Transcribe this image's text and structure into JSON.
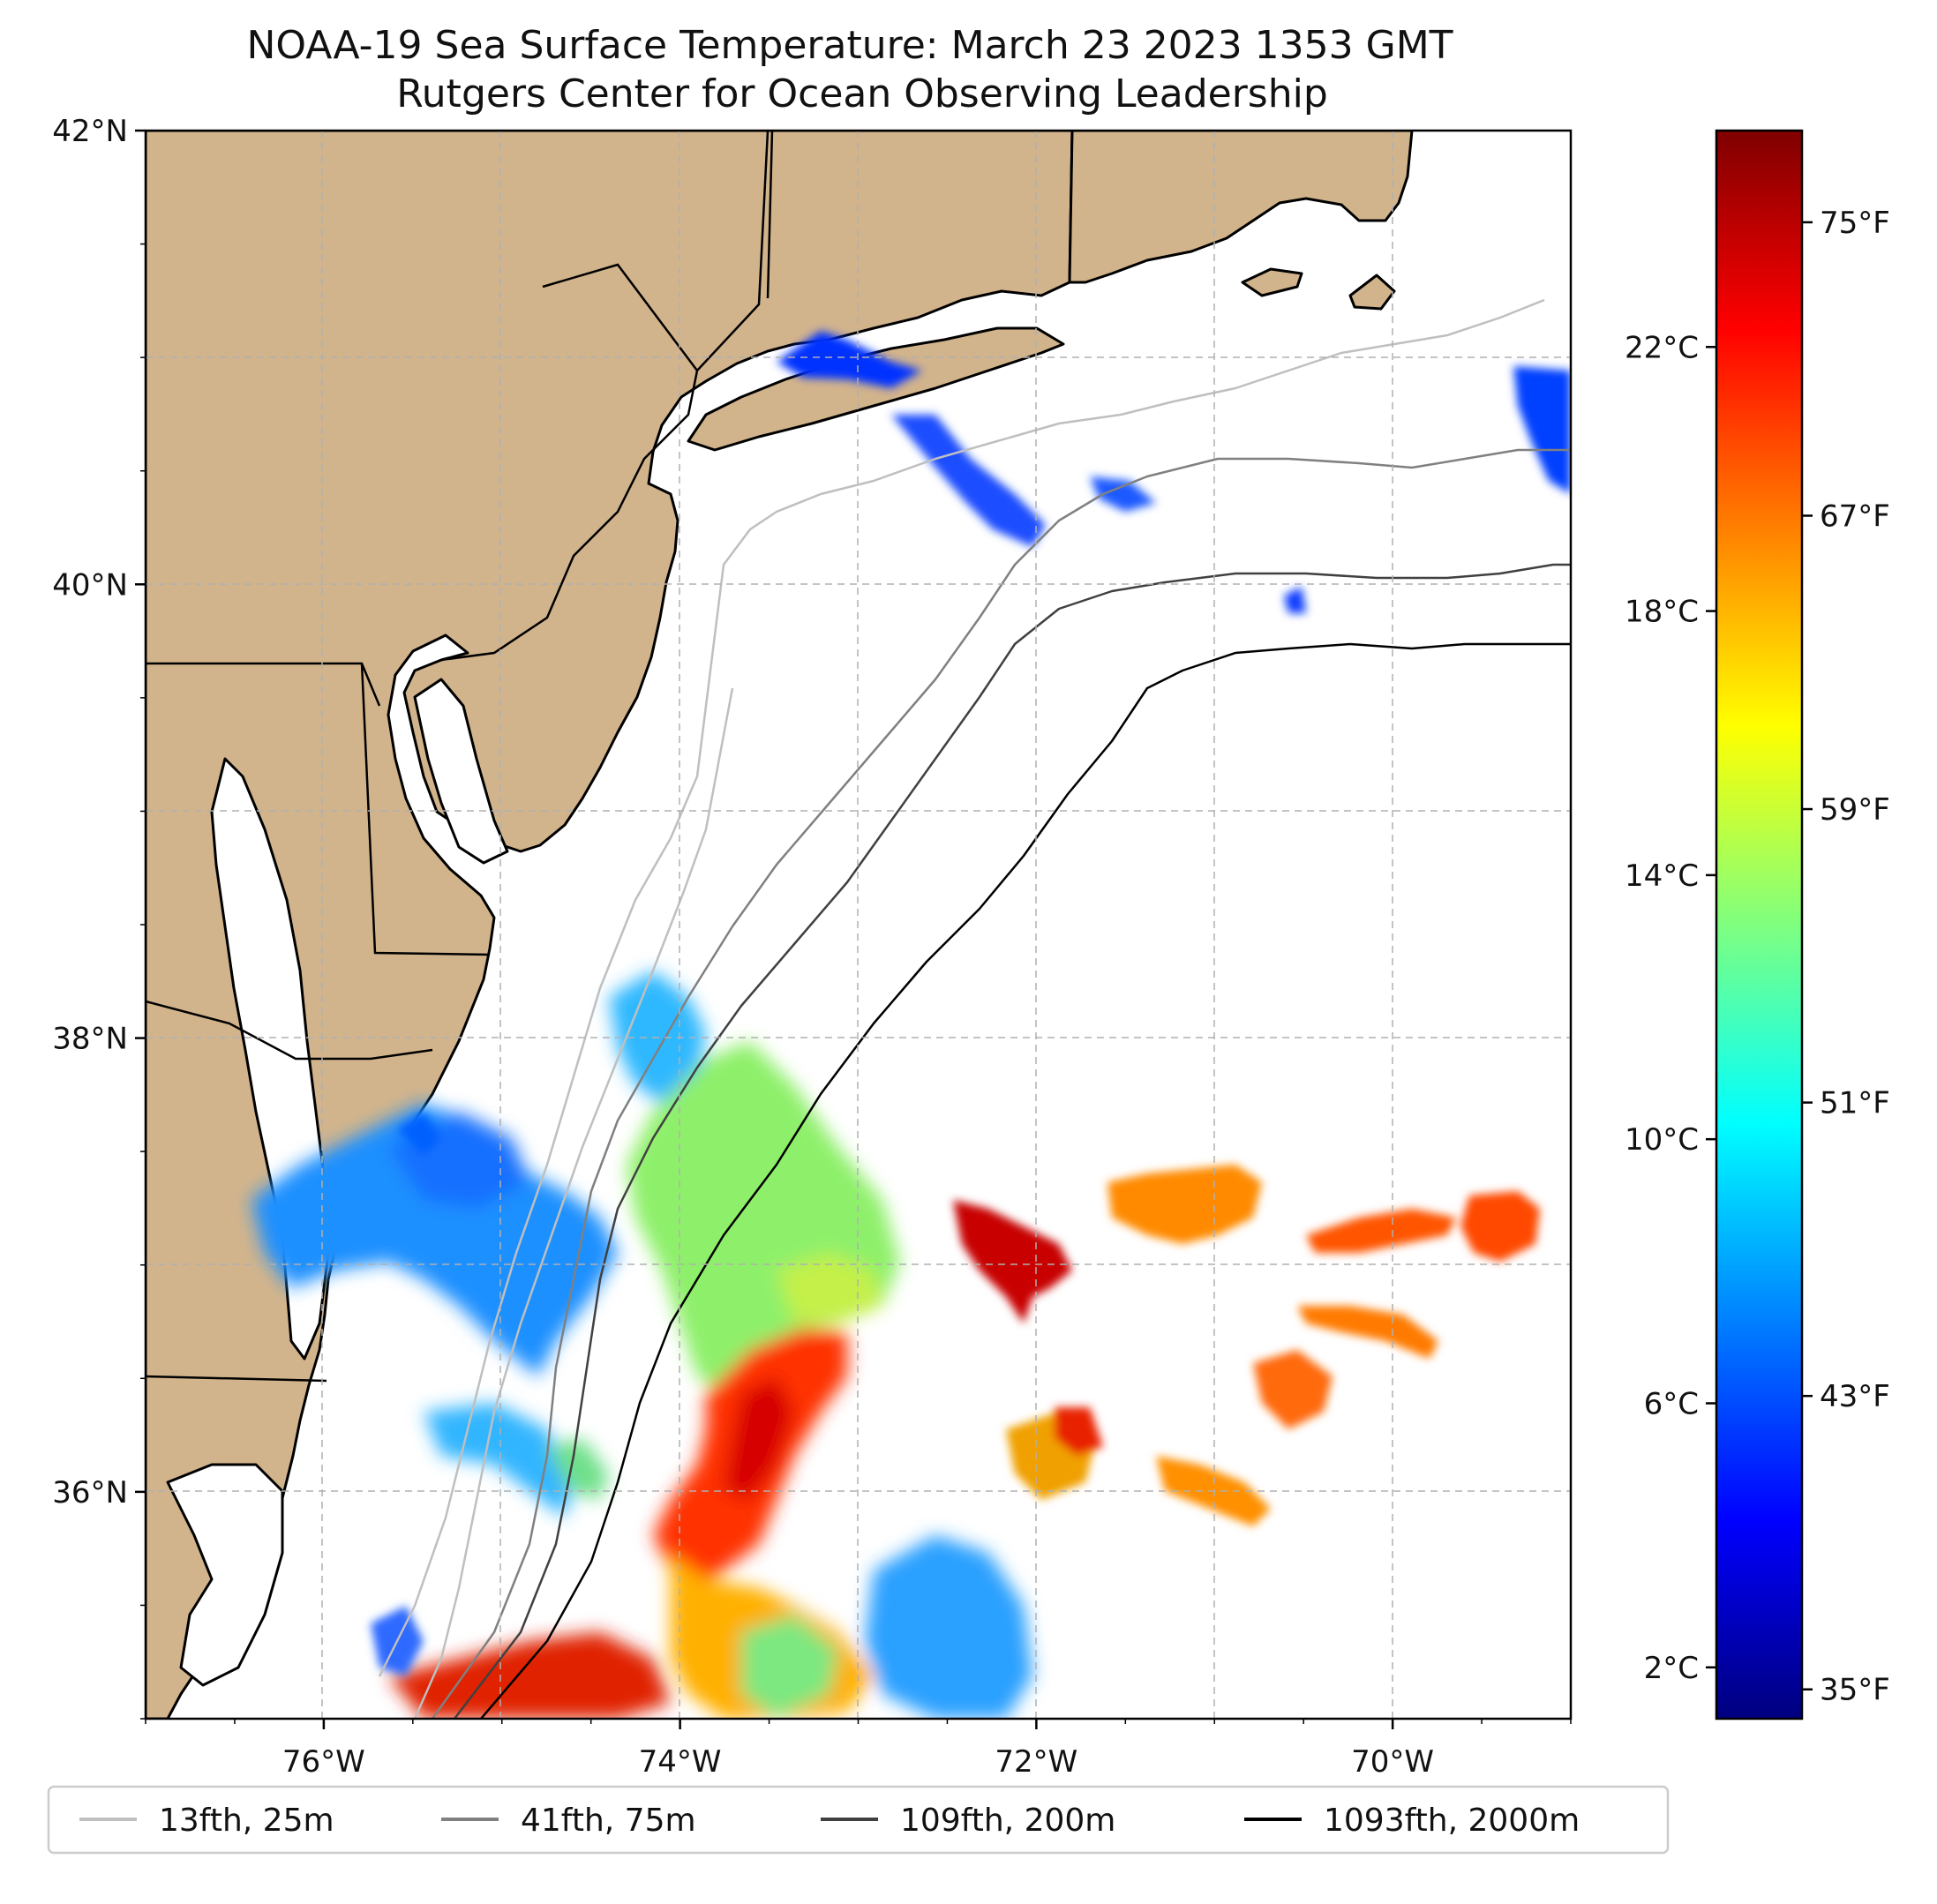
{
  "figure": {
    "title": "NOAA-19 Sea Surface Temperature: March 23 2023 1353 GMT",
    "subtitle": "Rutgers Center for Ocean Observing Leadership"
  },
  "map": {
    "extent": {
      "lon_min": -77,
      "lon_max": -69,
      "lat_min": 35,
      "lat_max": 42
    },
    "lon_ticks": [
      {
        "value": -76,
        "label": "76°W"
      },
      {
        "value": -74,
        "label": "74°W"
      },
      {
        "value": -72,
        "label": "72°W"
      },
      {
        "value": -70,
        "label": "70°W"
      }
    ],
    "lat_ticks": [
      {
        "value": 42,
        "label": "42°N"
      },
      {
        "value": 40,
        "label": "40°N"
      },
      {
        "value": 38,
        "label": "38°N"
      },
      {
        "value": 36,
        "label": "36°N"
      }
    ],
    "grid": true,
    "colors": {
      "land": "#d2b48c",
      "ocean": "#ffffff",
      "coast": "#000000",
      "grid": "#b0b0b0"
    }
  },
  "colorbar": {
    "colormap": "jet",
    "fahrenheit_ticks": [
      "75°F",
      "67°F",
      "59°F",
      "51°F",
      "43°F",
      "35°F"
    ],
    "celsius_ticks": [
      "22°C",
      "18°C",
      "14°C",
      "10°C",
      "6°C",
      "2°C"
    ],
    "stops": [
      "#00007f",
      "#0000ff",
      "#007fff",
      "#00ffff",
      "#7fff7f",
      "#ffff00",
      "#ff7f00",
      "#ff0000",
      "#7f0000"
    ]
  },
  "legend": {
    "items": [
      {
        "label": "13fth, 25m",
        "color": "#bfbfbf"
      },
      {
        "label": "41fth, 75m",
        "color": "#808080"
      },
      {
        "label": "109fth, 200m",
        "color": "#404040"
      },
      {
        "label": "1093fth, 2000m",
        "color": "#000000"
      }
    ]
  }
}
